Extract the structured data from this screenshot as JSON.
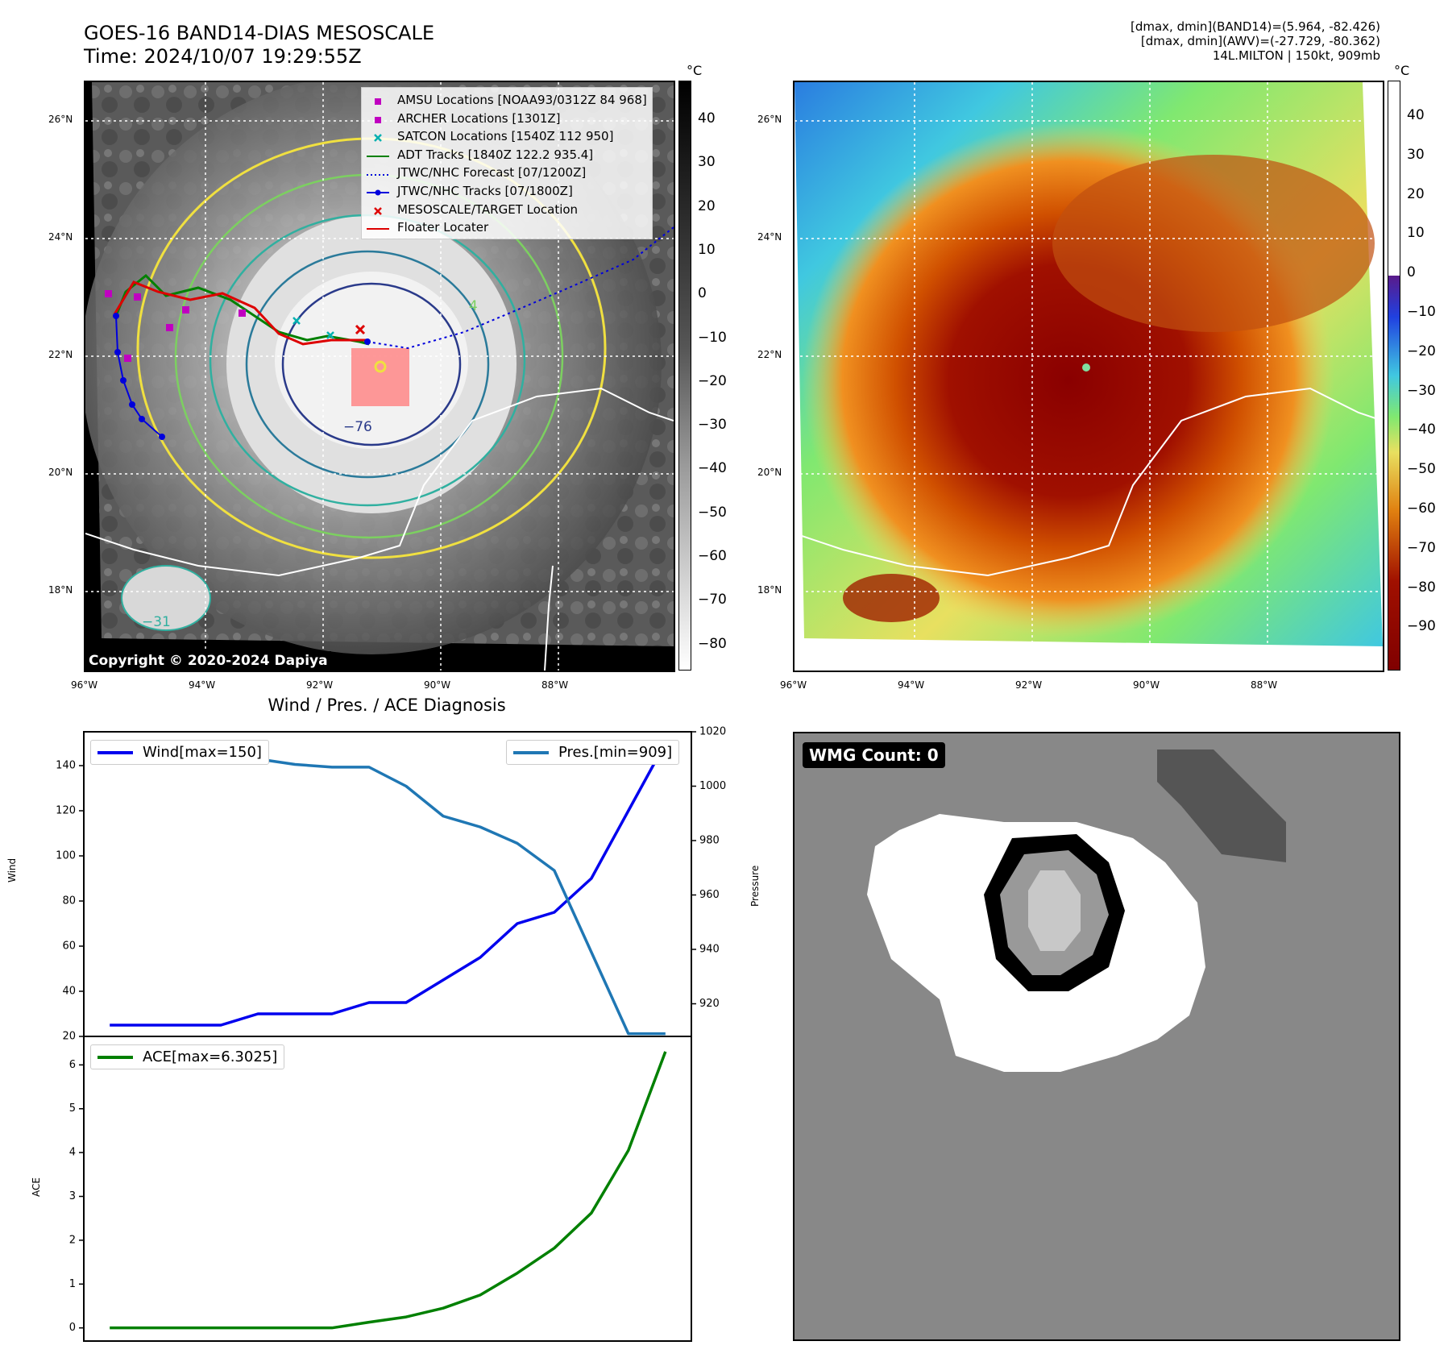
{
  "header": {
    "title_line1": "GOES-16 BAND14-DIAS MESOSCALE",
    "title_line2": "Time: 2024/10/07 19:29:55Z",
    "info_line1": "[dmax, dmin](BAND14)=(5.964, -82.426)",
    "info_line2": "[dmax, dmin](AWV)=(-27.729, -80.362)",
    "info_line3": "14L.MILTON | 150kt, 909mb"
  },
  "map": {
    "lat_ticks": [
      "26°N",
      "24°N",
      "22°N",
      "20°N",
      "18°N"
    ],
    "lon_ticks": [
      "96°W",
      "94°W",
      "92°W",
      "90°W",
      "88°W"
    ],
    "contour_label_inner": "−76",
    "contour_label_sw": "−31",
    "contour_label_ne": "4",
    "copyright": "Copyright © 2020-2024 Dapiya"
  },
  "legend": {
    "items": [
      {
        "label": "AMSU Locations [NOAA93/0312Z 84 968]",
        "color": "#c000c0",
        "kind": "square"
      },
      {
        "label": "ARCHER Locations [1301Z]",
        "color": "#c000c0",
        "kind": "square"
      },
      {
        "label": "SATCON Locations [1540Z 112 950]",
        "color": "#00b0b0",
        "kind": "x"
      },
      {
        "label": "ADT Tracks [1840Z 122.2 935.4]",
        "color": "#008000",
        "kind": "line"
      },
      {
        "label": "JTWC/NHC Forecast [07/1200Z]",
        "color": "#0000dd",
        "kind": "dotted"
      },
      {
        "label": "JTWC/NHC Tracks [07/1800Z]",
        "color": "#0000dd",
        "kind": "dotline"
      },
      {
        "label": "MESOSCALE/TARGET Location",
        "color": "#dd0000",
        "kind": "x"
      },
      {
        "label": "Floater Locater",
        "color": "#dd0000",
        "kind": "line"
      }
    ]
  },
  "colorbar_left": {
    "unit": "°C",
    "ticks": [
      "40",
      "30",
      "20",
      "10",
      "0",
      "−10",
      "−20",
      "−30",
      "−40",
      "−50",
      "−60",
      "−70",
      "−80"
    ]
  },
  "colorbar_right": {
    "unit": "°C",
    "ticks": [
      "40",
      "30",
      "20",
      "10",
      "0",
      "−10",
      "−20",
      "−30",
      "−40",
      "−50",
      "−60",
      "−70",
      "−80",
      "−90"
    ]
  },
  "wmg": {
    "label": "WMG Count: 0"
  },
  "colors": {
    "wind": "#0000ee",
    "pressure": "#1f77b4",
    "ace": "#008000"
  },
  "chart_data": [
    {
      "type": "line",
      "title": "Wind / Pres. / ACE Diagnosis",
      "xlabel": "",
      "ylabel": "Wind",
      "ylabel_right": "Pressure",
      "ylim": [
        20,
        155
      ],
      "ylim_right": [
        908,
        1020
      ],
      "yticks": [
        20,
        40,
        60,
        80,
        100,
        120,
        140
      ],
      "yticks_right": [
        920,
        940,
        960,
        980,
        1000,
        1020
      ],
      "x": [
        0,
        1,
        2,
        3,
        4,
        5,
        6,
        7,
        8,
        9,
        10,
        11,
        12,
        13,
        14,
        15
      ],
      "xlim": [
        -0.7,
        15.7
      ],
      "series": [
        {
          "name": "Wind[max=150]",
          "axis": "left",
          "values": [
            25,
            25,
            25,
            25,
            30,
            30,
            30,
            35,
            35,
            45,
            55,
            70,
            75,
            90,
            120,
            150
          ]
        },
        {
          "name": "Pres.[min=909]",
          "axis": "right",
          "values": [
            1015,
            1015,
            1014,
            1010,
            1010,
            1008,
            1007,
            1007,
            1000,
            989,
            985,
            979,
            969,
            939,
            909,
            909
          ]
        }
      ]
    },
    {
      "type": "line",
      "title": "",
      "xlabel": "",
      "ylabel": "ACE",
      "ylim": [
        -0.3,
        6.65
      ],
      "yticks": [
        0,
        1,
        2,
        3,
        4,
        5,
        6
      ],
      "x": [
        0,
        1,
        2,
        3,
        4,
        5,
        6,
        7,
        8,
        9,
        10,
        11,
        12,
        13,
        14,
        15
      ],
      "xlim": [
        -0.7,
        15.7
      ],
      "series": [
        {
          "name": "ACE[max=6.3025]",
          "values": [
            0,
            0,
            0,
            0,
            0,
            0,
            0,
            0.13,
            0.25,
            0.45,
            0.75,
            1.25,
            1.82,
            2.62,
            4.05,
            6.3025
          ]
        }
      ]
    }
  ]
}
